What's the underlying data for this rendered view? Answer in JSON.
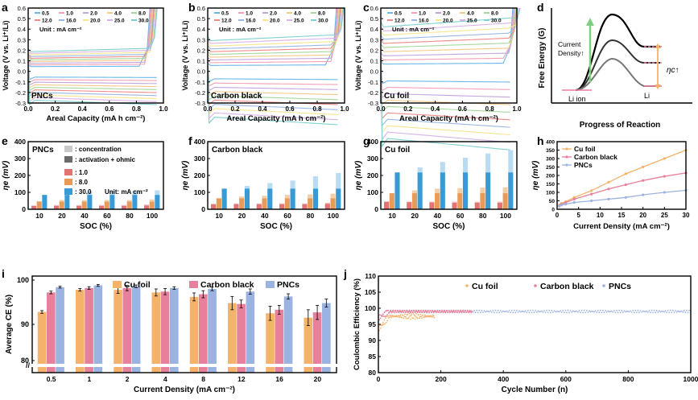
{
  "colors": {
    "cu": "#f5b26b",
    "cb": "#e7809a",
    "pnc": "#9bb3e0",
    "conc_light": "#bcdcef",
    "r1": "#e37272",
    "r8": "#e99a57",
    "r30": "#3a9ad3",
    "axis": "#000000"
  },
  "panel_labels": [
    "a",
    "b",
    "c",
    "d",
    "e",
    "f",
    "g",
    "h",
    "i",
    "j"
  ],
  "voltage_panels": {
    "ylabel": "Voltage (V vs. Li⁺/Li)",
    "xlabel": "Areal Capacity (mA h cm⁻²)",
    "xticks": [
      "0.0",
      "0.2",
      "0.4",
      "0.6",
      "0.8",
      "1.0"
    ],
    "yticks": [
      "0.6",
      "0.5",
      "0.4",
      "0.3",
      "0.2",
      "0.1",
      "0.0",
      "-0.1",
      "-0.2",
      "-0.3"
    ],
    "legend": [
      "0.5",
      "1.0",
      "2.0",
      "4.0",
      "8.0",
      "12.0",
      "16.0",
      "20.0",
      "25.0",
      "30.0"
    ],
    "unit_note": "Unit : mA cm⁻²",
    "legend_colors": [
      "#6bb7e6",
      "#f2a0b8",
      "#c3a6df",
      "#f4c98a",
      "#a6d79c",
      "#ef8a8a",
      "#9ab8e3",
      "#f6e68c",
      "#d9b3e8",
      "#7fd1cf"
    ],
    "names": [
      "PNCs",
      "Carbon black",
      "Cu foil"
    ]
  },
  "energy_panel": {
    "ylabel": "Free Energy (G)",
    "xlabel": "Progress of Reaction",
    "left_label": "Li ion",
    "right_label": "Li",
    "current_label_1": "Current",
    "current_label_2": "Density↑",
    "eta_label": "ηc↑"
  },
  "bar_panels": {
    "xlabel": "SOC (%)",
    "ylabel": "ηe (mV)",
    "categories": [
      "10",
      "20",
      "40",
      "60",
      "80",
      "100"
    ],
    "legend": {
      "concentration": ": concentration",
      "activation": ": activation + ohmic",
      "r1": ": 1.0",
      "r8": ": 8.0",
      "r30": ": 30.0",
      "unit": "Unit: mA cm⁻²"
    }
  },
  "chart_data": [
    {
      "panel": "e",
      "type": "bar",
      "title": "PNCs",
      "categories": [
        "10",
        "20",
        "40",
        "60",
        "80",
        "100"
      ],
      "ylim": [
        0,
        400
      ],
      "yticks": [
        "0",
        "100",
        "200",
        "300",
        "400"
      ],
      "series": [
        {
          "name": "1.0",
          "activation": [
            20,
            20,
            20,
            20,
            20,
            22
          ],
          "total": [
            22,
            25,
            25,
            25,
            25,
            28
          ]
        },
        {
          "name": "8.0",
          "activation": [
            45,
            45,
            45,
            45,
            45,
            45
          ],
          "total": [
            48,
            55,
            55,
            55,
            55,
            58
          ]
        },
        {
          "name": "30.0",
          "activation": [
            85,
            85,
            85,
            85,
            85,
            85
          ],
          "total": [
            85,
            105,
            108,
            108,
            110,
            112
          ]
        }
      ]
    },
    {
      "panel": "f",
      "type": "bar",
      "title": "Carbon black",
      "categories": [
        "10",
        "20",
        "40",
        "60",
        "80",
        "100"
      ],
      "ylim": [
        0,
        400
      ],
      "yticks": [
        "0",
        "100",
        "200",
        "300",
        "400"
      ],
      "series": [
        {
          "name": "1.0",
          "activation": [
            30,
            30,
            30,
            30,
            30,
            32
          ],
          "total": [
            32,
            35,
            35,
            35,
            35,
            38
          ]
        },
        {
          "name": "8.0",
          "activation": [
            65,
            65,
            65,
            65,
            65,
            65
          ],
          "total": [
            65,
            75,
            80,
            85,
            88,
            92
          ]
        },
        {
          "name": "30.0",
          "activation": [
            122,
            122,
            122,
            122,
            122,
            122
          ],
          "total": [
            122,
            138,
            155,
            170,
            195,
            215
          ]
        }
      ]
    },
    {
      "panel": "g",
      "type": "bar",
      "title": "Cu foil",
      "categories": [
        "10",
        "20",
        "40",
        "60",
        "80",
        "100"
      ],
      "ylim": [
        0,
        400
      ],
      "yticks": [
        "0",
        "100",
        "200",
        "300",
        "400"
      ],
      "series": [
        {
          "name": "1.0",
          "activation": [
            45,
            42,
            40,
            38,
            38,
            38
          ],
          "total": [
            45,
            45,
            45,
            45,
            45,
            45
          ]
        },
        {
          "name": "8.0",
          "activation": [
            95,
            95,
            95,
            95,
            95,
            95
          ],
          "total": [
            95,
            112,
            122,
            125,
            128,
            130
          ]
        },
        {
          "name": "30.0",
          "activation": [
            218,
            218,
            218,
            218,
            218,
            218
          ],
          "total": [
            218,
            248,
            280,
            305,
            330,
            350
          ]
        }
      ]
    },
    {
      "panel": "h",
      "type": "line",
      "xlabel": "Current Density (mA cm⁻²)",
      "ylabel": "ηe (mV)",
      "xlim": [
        0,
        30
      ],
      "ylim": [
        0,
        400
      ],
      "xticks": [
        "0",
        "5",
        "10",
        "15",
        "20",
        "25",
        "30"
      ],
      "yticks": [
        "0",
        "50",
        "100",
        "150",
        "200",
        "250",
        "300",
        "350",
        "400"
      ],
      "x": [
        0.5,
        1,
        2,
        4,
        8,
        12,
        16,
        20,
        25,
        30
      ],
      "series": [
        {
          "name": "Cu foil",
          "values": [
            25,
            35,
            45,
            70,
            110,
            160,
            210,
            250,
            300,
            350
          ]
        },
        {
          "name": "Carbon black",
          "values": [
            20,
            30,
            40,
            60,
            90,
            120,
            145,
            170,
            195,
            215
          ]
        },
        {
          "name": "PNCs",
          "values": [
            18,
            25,
            30,
            40,
            50,
            60,
            70,
            85,
            100,
            112
          ]
        }
      ]
    },
    {
      "panel": "i",
      "type": "bar",
      "xlabel": "Current Density (mA cm⁻²)",
      "ylabel": "Average CE (%)",
      "categories": [
        "0.5",
        "1",
        "2",
        "4",
        "8",
        "12",
        "16",
        "20"
      ],
      "ylim": [
        80,
        100
      ],
      "yticks": [
        "80",
        "90",
        "100"
      ],
      "series": [
        {
          "name": "Cu foil",
          "values": [
            92.8,
            97.8,
            97.8,
            97.2,
            96.2,
            94.8,
            92.5,
            91.5
          ],
          "errors": [
            0.3,
            0.3,
            0.8,
            0.8,
            0.9,
            1.5,
            1.6,
            1.8
          ]
        },
        {
          "name": "Carbon black",
          "values": [
            97.2,
            98.2,
            98.2,
            97.4,
            96.8,
            94.6,
            93.3,
            92.7
          ],
          "errors": [
            0.3,
            0.3,
            0.6,
            0.7,
            0.8,
            0.9,
            1.0,
            1.6
          ]
        },
        {
          "name": "PNCs",
          "values": [
            98.4,
            98.8,
            98.6,
            98.2,
            98.0,
            97.4,
            96.3,
            94.8
          ],
          "errors": [
            0.2,
            0.2,
            0.3,
            0.3,
            0.4,
            0.6,
            0.6,
            0.9
          ]
        }
      ]
    },
    {
      "panel": "j",
      "type": "scatter",
      "xlabel": "Cycle Number (n)",
      "ylabel": "Coulombic Efficiency (%)",
      "xlim": [
        0,
        1000
      ],
      "ylim": [
        80,
        110
      ],
      "xticks": [
        "0",
        "200",
        "400",
        "600",
        "800",
        "1000"
      ],
      "yticks": [
        "80",
        "85",
        "90",
        "95",
        "100",
        "105",
        "110"
      ],
      "series": [
        {
          "name": "Cu foil",
          "cycles": 180,
          "level": 97.5
        },
        {
          "name": "Carbon black",
          "cycles": 300,
          "level": 99.0
        },
        {
          "name": "PNCs",
          "cycles": 1000,
          "level": 99.0
        }
      ]
    }
  ]
}
